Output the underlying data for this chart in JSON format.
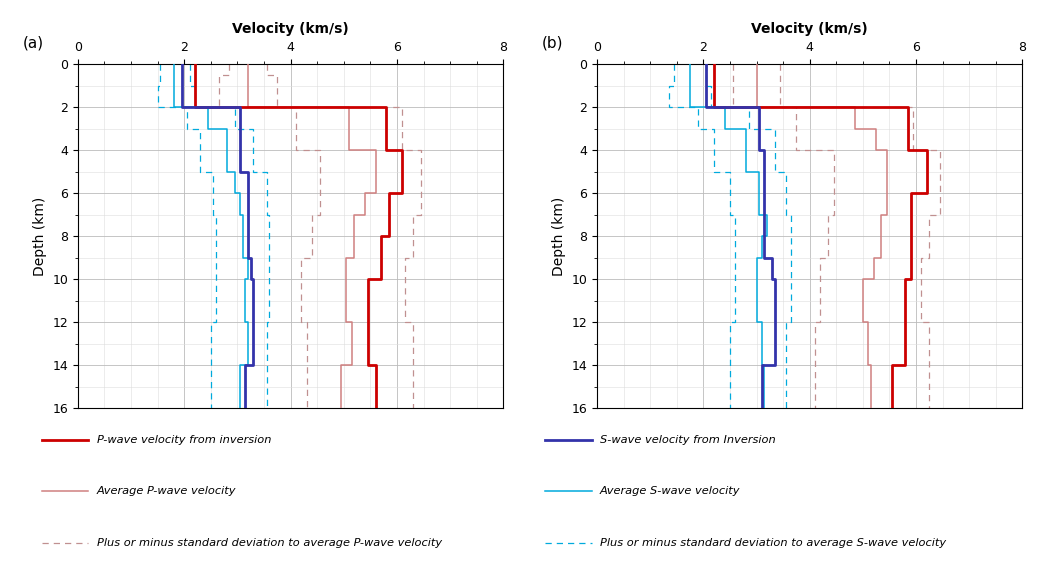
{
  "title": "Velocity (km/s)",
  "ylabel": "Depth (km)",
  "xlim": [
    0,
    8
  ],
  "ylim": [
    16,
    0
  ],
  "xticks": [
    0,
    2,
    4,
    6,
    8
  ],
  "yticks": [
    0,
    2,
    4,
    6,
    8,
    10,
    12,
    14,
    16
  ],
  "panel_a": {
    "label": "(a)",
    "p_inversion": {
      "color": "#cc0000",
      "linewidth": 2.0,
      "depths": [
        0,
        2,
        2,
        4,
        4,
        6,
        6,
        8,
        8,
        10,
        10,
        14,
        14,
        16
      ],
      "velocities": [
        2.2,
        2.2,
        5.8,
        5.8,
        6.1,
        6.1,
        5.85,
        5.85,
        5.7,
        5.7,
        5.45,
        5.45,
        5.6,
        5.6
      ]
    },
    "p_average": {
      "color": "#d08080",
      "linewidth": 1.1,
      "depths": [
        0,
        2,
        2,
        4,
        4,
        6,
        6,
        7,
        7,
        9,
        9,
        12,
        12,
        14,
        14,
        16
      ],
      "velocities": [
        3.2,
        3.2,
        5.1,
        5.1,
        5.6,
        5.6,
        5.4,
        5.4,
        5.2,
        5.2,
        5.05,
        5.05,
        5.15,
        5.15,
        4.95,
        4.95
      ]
    },
    "p_std_upper": {
      "color": "#c09090",
      "linewidth": 0.9,
      "depths": [
        0,
        0.5,
        0.5,
        2,
        2,
        4,
        4,
        7,
        7,
        9,
        9,
        12,
        12,
        16
      ],
      "velocities": [
        3.55,
        3.55,
        3.75,
        3.75,
        6.1,
        6.1,
        6.45,
        6.45,
        6.3,
        6.3,
        6.15,
        6.15,
        6.3,
        6.3
      ]
    },
    "p_std_lower": {
      "color": "#c09090",
      "linewidth": 0.9,
      "depths": [
        0,
        0.5,
        0.5,
        2,
        2,
        4,
        4,
        7,
        7,
        9,
        9,
        12,
        12,
        16
      ],
      "velocities": [
        2.85,
        2.85,
        2.65,
        2.65,
        4.1,
        4.1,
        4.55,
        4.55,
        4.4,
        4.4,
        4.2,
        4.2,
        4.3,
        4.3
      ]
    },
    "s_inversion": {
      "color": "#3333aa",
      "linewidth": 2.0,
      "depths": [
        0,
        2,
        2,
        5,
        5,
        9,
        9,
        10,
        10,
        14,
        14,
        16
      ],
      "velocities": [
        1.95,
        1.95,
        3.05,
        3.05,
        3.2,
        3.2,
        3.25,
        3.25,
        3.3,
        3.3,
        3.15,
        3.15
      ]
    },
    "s_average": {
      "color": "#00aadd",
      "linewidth": 1.1,
      "depths": [
        0,
        2,
        2,
        3,
        3,
        5,
        5,
        6,
        6,
        7,
        7,
        9,
        9,
        10,
        10,
        12,
        12,
        14,
        14,
        16
      ],
      "velocities": [
        1.8,
        1.8,
        2.45,
        2.45,
        2.8,
        2.8,
        2.95,
        2.95,
        3.05,
        3.05,
        3.1,
        3.1,
        3.2,
        3.2,
        3.15,
        3.15,
        3.2,
        3.2,
        3.05,
        3.05
      ]
    },
    "s_std_upper": {
      "color": "#00aadd",
      "linewidth": 0.9,
      "depths": [
        0,
        1,
        1,
        2,
        2,
        3,
        3,
        5,
        5,
        7,
        7,
        12,
        12,
        16
      ],
      "velocities": [
        2.1,
        2.1,
        2.2,
        2.2,
        2.95,
        2.95,
        3.3,
        3.3,
        3.55,
        3.55,
        3.6,
        3.6,
        3.55,
        3.55
      ]
    },
    "s_std_lower": {
      "color": "#00aadd",
      "linewidth": 0.9,
      "depths": [
        0,
        1,
        1,
        2,
        2,
        3,
        3,
        5,
        5,
        7,
        7,
        12,
        12,
        16
      ],
      "velocities": [
        1.55,
        1.55,
        1.5,
        1.5,
        2.05,
        2.05,
        2.3,
        2.3,
        2.55,
        2.55,
        2.6,
        2.6,
        2.5,
        2.5
      ]
    }
  },
  "panel_b": {
    "label": "(b)",
    "p_inversion": {
      "color": "#cc0000",
      "linewidth": 2.0,
      "depths": [
        0,
        2,
        2,
        4,
        4,
        6,
        6,
        10,
        10,
        14,
        14,
        16
      ],
      "velocities": [
        2.2,
        2.2,
        5.85,
        5.85,
        6.2,
        6.2,
        5.9,
        5.9,
        5.8,
        5.8,
        5.55,
        5.55
      ]
    },
    "p_average": {
      "color": "#d08080",
      "linewidth": 1.1,
      "depths": [
        0,
        2,
        2,
        3,
        3,
        4,
        4,
        7,
        7,
        9,
        9,
        10,
        10,
        12,
        12,
        14,
        14,
        16
      ],
      "velocities": [
        3.0,
        3.0,
        4.85,
        4.85,
        5.25,
        5.25,
        5.45,
        5.45,
        5.35,
        5.35,
        5.2,
        5.2,
        5.0,
        5.0,
        5.1,
        5.1,
        5.15,
        5.15
      ]
    },
    "p_std_upper": {
      "color": "#c09090",
      "linewidth": 0.9,
      "depths": [
        0,
        2,
        2,
        4,
        4,
        7,
        7,
        9,
        9,
        12,
        12,
        16
      ],
      "velocities": [
        3.45,
        3.45,
        5.95,
        5.95,
        6.45,
        6.45,
        6.25,
        6.25,
        6.1,
        6.1,
        6.25,
        6.25
      ]
    },
    "p_std_lower": {
      "color": "#c09090",
      "linewidth": 0.9,
      "depths": [
        0,
        2,
        2,
        4,
        4,
        7,
        7,
        9,
        9,
        12,
        12,
        16
      ],
      "velocities": [
        2.55,
        2.55,
        3.75,
        3.75,
        4.45,
        4.45,
        4.35,
        4.35,
        4.2,
        4.2,
        4.1,
        4.1
      ]
    },
    "s_inversion": {
      "color": "#3333aa",
      "linewidth": 2.0,
      "depths": [
        0,
        2,
        2,
        4,
        4,
        9,
        9,
        10,
        10,
        14,
        14,
        16
      ],
      "velocities": [
        2.05,
        2.05,
        3.05,
        3.05,
        3.15,
        3.15,
        3.3,
        3.3,
        3.35,
        3.35,
        3.1,
        3.1
      ]
    },
    "s_average": {
      "color": "#00aadd",
      "linewidth": 1.1,
      "depths": [
        0,
        2,
        2,
        3,
        3,
        5,
        5,
        7,
        7,
        8,
        8,
        9,
        9,
        12,
        12,
        14,
        14,
        16
      ],
      "velocities": [
        1.75,
        1.75,
        2.4,
        2.4,
        2.8,
        2.8,
        3.05,
        3.05,
        3.2,
        3.2,
        3.1,
        3.1,
        3.0,
        3.0,
        3.1,
        3.1,
        3.15,
        3.15
      ]
    },
    "s_std_upper": {
      "color": "#00aadd",
      "linewidth": 0.9,
      "depths": [
        0,
        1,
        1,
        2,
        2,
        3,
        3,
        5,
        5,
        7,
        7,
        12,
        12,
        16
      ],
      "velocities": [
        2.05,
        2.05,
        2.15,
        2.15,
        2.85,
        2.85,
        3.35,
        3.35,
        3.55,
        3.55,
        3.65,
        3.65,
        3.55,
        3.55
      ]
    },
    "s_std_lower": {
      "color": "#00aadd",
      "linewidth": 0.9,
      "depths": [
        0,
        1,
        1,
        2,
        2,
        3,
        3,
        5,
        5,
        7,
        7,
        12,
        12,
        16
      ],
      "velocities": [
        1.45,
        1.45,
        1.35,
        1.35,
        1.9,
        1.9,
        2.2,
        2.2,
        2.5,
        2.5,
        2.6,
        2.6,
        2.5,
        2.5
      ]
    }
  },
  "legend_a": [
    {
      "label": "P-wave velocity from inversion",
      "color": "#cc0000",
      "lw": 2.0,
      "ls": "solid"
    },
    {
      "label": "Average P-wave velocity",
      "color": "#d08080",
      "lw": 1.1,
      "ls": "solid"
    },
    {
      "label": "Plus or minus standard deviation to average P-wave velocity",
      "color": "#c09090",
      "lw": 0.9,
      "ls": "dashed"
    }
  ],
  "legend_b": [
    {
      "label": "S-wave velocity from Inversion",
      "color": "#3333aa",
      "lw": 2.0,
      "ls": "solid"
    },
    {
      "label": "Average S-wave velocity",
      "color": "#00aadd",
      "lw": 1.1,
      "ls": "solid"
    },
    {
      "label": "Plus or minus standard deviation to average S-wave velocity",
      "color": "#00aadd",
      "lw": 0.9,
      "ls": "dashed"
    }
  ],
  "grid_major_color": "#bbbbbb",
  "grid_minor_color": "#dddddd",
  "bg_color": "#ffffff",
  "plot_bg": "#ffffff"
}
